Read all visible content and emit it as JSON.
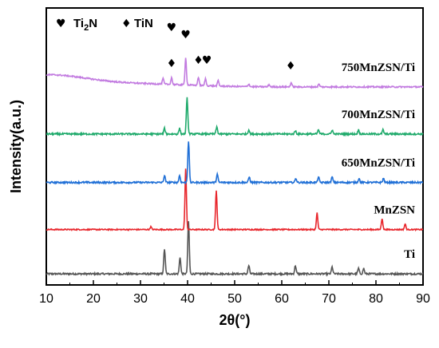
{
  "chart_data": {
    "type": "line",
    "xlabel": "2θ(°)",
    "ylabel": "Intensity(a.u.)",
    "xlim": [
      10,
      90
    ],
    "xticks": [
      "10",
      "20",
      "30",
      "40",
      "50",
      "60",
      "70",
      "80",
      "90"
    ],
    "y_ticks_shown": false,
    "legend": {
      "placement": "top-left",
      "entries": [
        {
          "symbol": "♥",
          "label_main": "Ti",
          "label_sub": "2",
          "label_tail": "N"
        },
        {
          "symbol": "♦",
          "label_main": "TiN",
          "label_sub": "",
          "label_tail": ""
        }
      ]
    },
    "series": [
      {
        "name": "Ti",
        "color": "#555555",
        "baseline": 0.04,
        "noise": 0.006,
        "peaks": [
          [
            35.1,
            0.09
          ],
          [
            38.4,
            0.06
          ],
          [
            40.2,
            0.19
          ],
          [
            53.0,
            0.03
          ],
          [
            62.9,
            0.03
          ],
          [
            70.7,
            0.025
          ],
          [
            76.3,
            0.02
          ],
          [
            77.4,
            0.02
          ]
        ]
      },
      {
        "name": "MnZSN",
        "color": "#e8262c",
        "baseline": 0.2,
        "noise": 0.004,
        "peaks": [
          [
            39.6,
            0.22
          ],
          [
            46.1,
            0.14
          ],
          [
            67.5,
            0.06
          ],
          [
            81.3,
            0.04
          ],
          [
            86.2,
            0.02
          ],
          [
            32.2,
            0.01
          ]
        ]
      },
      {
        "name": "650MnZSN/Ti",
        "color": "#1f6fd6",
        "baseline": 0.37,
        "noise": 0.006,
        "peaks": [
          [
            35.1,
            0.025
          ],
          [
            38.3,
            0.025
          ],
          [
            40.2,
            0.15
          ],
          [
            46.3,
            0.03
          ],
          [
            53.1,
            0.02
          ],
          [
            63.0,
            0.015
          ],
          [
            67.8,
            0.02
          ],
          [
            70.7,
            0.02
          ],
          [
            76.4,
            0.015
          ],
          [
            81.6,
            0.015
          ]
        ]
      },
      {
        "name": "700MnZSN/Ti",
        "color": "#1faa6b",
        "baseline": 0.545,
        "noise": 0.006,
        "peaks": [
          [
            35.1,
            0.02
          ],
          [
            38.3,
            0.02
          ],
          [
            39.9,
            0.13
          ],
          [
            46.2,
            0.025
          ],
          [
            53.0,
            0.015
          ],
          [
            62.9,
            0.012
          ],
          [
            67.8,
            0.015
          ],
          [
            70.7,
            0.015
          ],
          [
            76.3,
            0.015
          ],
          [
            81.5,
            0.015
          ]
        ]
      },
      {
        "name": "750MnZSN/Ti",
        "color": "#c27be0",
        "baseline": 0.715,
        "noise": 0.005,
        "hump": 0.07,
        "peaks": [
          [
            34.8,
            0.02
          ],
          [
            36.6,
            0.025
          ],
          [
            39.6,
            0.1
          ],
          [
            42.3,
            0.03
          ],
          [
            43.8,
            0.025
          ],
          [
            46.5,
            0.02
          ],
          [
            53.0,
            0.01
          ],
          [
            57.3,
            0.008
          ],
          [
            62.0,
            0.015
          ],
          [
            67.9,
            0.01
          ]
        ]
      }
    ],
    "annotations": [
      {
        "symbol": "♥",
        "x": 36.6,
        "row": 1
      },
      {
        "symbol": "♦",
        "x": 36.6,
        "row": 2
      },
      {
        "symbol": "♥",
        "x": 39.6,
        "row": 0
      },
      {
        "symbol": "♦",
        "x": 42.3,
        "row": 3
      },
      {
        "symbol": "♥",
        "x": 44.1,
        "row": 3
      },
      {
        "symbol": "♦",
        "x": 61.9,
        "row": 4
      }
    ]
  }
}
